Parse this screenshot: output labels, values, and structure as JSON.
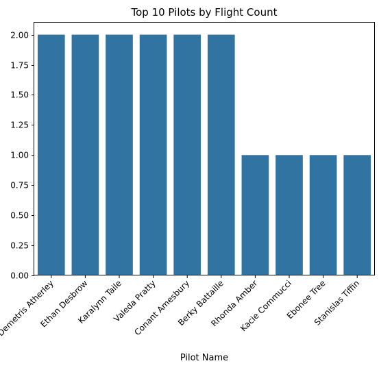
{
  "chart_data": {
    "type": "bar",
    "title": "Top 10 Pilots by Flight Count",
    "xlabel": "Pilot Name",
    "ylabel": "",
    "categories": [
      "Demetris Atherley",
      "Ethan Desbrow",
      "Karalynn Taile",
      "Valeda Pratty",
      "Conant Amesbury",
      "Berky Battaille",
      "Rhonda Amber",
      "Kacie Commucci",
      "Ebonee Tree",
      "Stanislas Tiffin"
    ],
    "values": [
      2,
      2,
      2,
      2,
      2,
      2,
      1,
      1,
      1,
      1
    ],
    "ylim": [
      0,
      2.1
    ],
    "yticks": [
      0,
      0.25,
      0.5,
      0.75,
      1.0,
      1.25,
      1.5,
      1.75,
      2.0
    ],
    "ytick_labels": [
      "0.00",
      "0.25",
      "0.50",
      "0.75",
      "1.00",
      "1.25",
      "1.50",
      "1.75",
      "2.00"
    ],
    "grid": false,
    "legend": "none",
    "colors": {
      "bar": "#3274a1",
      "axis": "#000000",
      "background": "#ffffff"
    }
  }
}
